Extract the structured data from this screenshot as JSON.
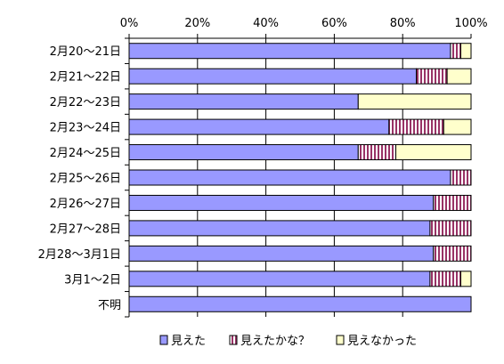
{
  "chart_data": {
    "type": "bar",
    "orientation": "horizontal",
    "stacked": "percent",
    "categories": [
      "2月20～21日",
      "2月21～22日",
      "2月22～23日",
      "2月23～24日",
      "2月24～25日",
      "2月25～26日",
      "2月26～27日",
      "2月27～28日",
      "2月28～3月1日",
      "3月1～2日",
      "不明"
    ],
    "series": [
      {
        "name": "見えた",
        "color": "#9999ff",
        "pattern": "solid",
        "values": [
          94,
          84,
          67,
          76,
          67,
          94,
          89,
          88,
          89,
          88,
          100
        ]
      },
      {
        "name": "見えたかな？",
        "color": "#993366",
        "pattern": "vertical-stripes",
        "values": [
          3,
          9,
          0,
          16,
          11,
          6,
          11,
          12,
          11,
          9,
          0
        ]
      },
      {
        "name": "見えなかった",
        "color": "#ffffcc",
        "pattern": "solid",
        "values": [
          3,
          7,
          33,
          8,
          22,
          0,
          0,
          0,
          0,
          3,
          0
        ]
      }
    ],
    "x_tick_labels": [
      "0%",
      "20%",
      "40%",
      "60%",
      "80%",
      "100%"
    ],
    "xlim": [
      0,
      100
    ],
    "grid": "vertical",
    "legend_position": "bottom",
    "title": "",
    "xlabel": "",
    "ylabel": ""
  }
}
